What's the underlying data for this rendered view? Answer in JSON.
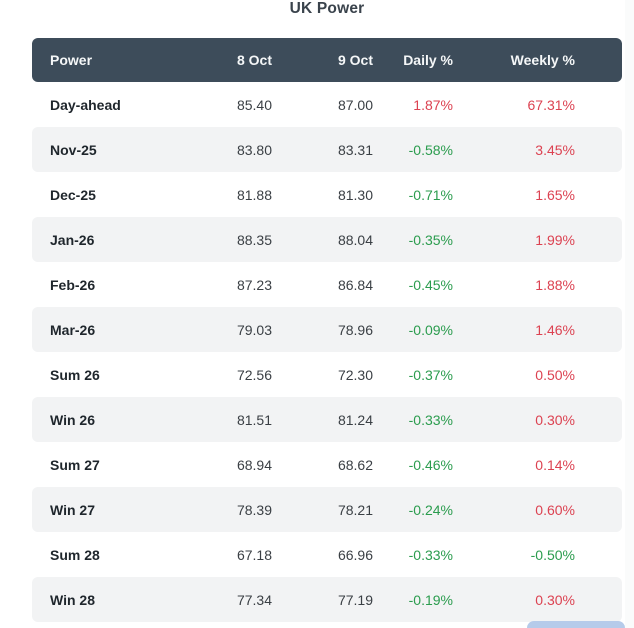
{
  "title": "UK Power",
  "colors": {
    "header_bg": "#3d4c5a",
    "stripe_row_bg": "#f2f3f4",
    "negative_red": "#dc4251",
    "positive_green": "#2b9c4e",
    "partial_button_blue": "#b6cbea"
  },
  "table": {
    "columns": [
      "Power",
      "8 Oct",
      "9 Oct",
      "Daily %",
      "Weekly %"
    ],
    "rows": [
      {
        "label": "Day-ahead",
        "oct8": "85.40",
        "oct9": "87.00",
        "daily": "1.87%",
        "weekly": "67.31%",
        "daily_color": "#dc4251",
        "weekly_color": "#dc4251"
      },
      {
        "label": "Nov-25",
        "oct8": "83.80",
        "oct9": "83.31",
        "daily": "-0.58%",
        "weekly": "3.45%",
        "daily_color": "#2b9c4e",
        "weekly_color": "#dc4251"
      },
      {
        "label": "Dec-25",
        "oct8": "81.88",
        "oct9": "81.30",
        "daily": "-0.71%",
        "weekly": "1.65%",
        "daily_color": "#2b9c4e",
        "weekly_color": "#dc4251"
      },
      {
        "label": "Jan-26",
        "oct8": "88.35",
        "oct9": "88.04",
        "daily": "-0.35%",
        "weekly": "1.99%",
        "daily_color": "#2b9c4e",
        "weekly_color": "#dc4251"
      },
      {
        "label": "Feb-26",
        "oct8": "87.23",
        "oct9": "86.84",
        "daily": "-0.45%",
        "weekly": "1.88%",
        "daily_color": "#2b9c4e",
        "weekly_color": "#dc4251"
      },
      {
        "label": "Mar-26",
        "oct8": "79.03",
        "oct9": "78.96",
        "daily": "-0.09%",
        "weekly": "1.46%",
        "daily_color": "#2b9c4e",
        "weekly_color": "#dc4251"
      },
      {
        "label": "Sum 26",
        "oct8": "72.56",
        "oct9": "72.30",
        "daily": "-0.37%",
        "weekly": "0.50%",
        "daily_color": "#2b9c4e",
        "weekly_color": "#dc4251"
      },
      {
        "label": "Win 26",
        "oct8": "81.51",
        "oct9": "81.24",
        "daily": "-0.33%",
        "weekly": "0.30%",
        "daily_color": "#2b9c4e",
        "weekly_color": "#dc4251"
      },
      {
        "label": "Sum 27",
        "oct8": "68.94",
        "oct9": "68.62",
        "daily": "-0.46%",
        "weekly": "0.14%",
        "daily_color": "#2b9c4e",
        "weekly_color": "#dc4251"
      },
      {
        "label": "Win 27",
        "oct8": "78.39",
        "oct9": "78.21",
        "daily": "-0.24%",
        "weekly": "0.60%",
        "daily_color": "#2b9c4e",
        "weekly_color": "#dc4251"
      },
      {
        "label": "Sum 28",
        "oct8": "67.18",
        "oct9": "66.96",
        "daily": "-0.33%",
        "weekly": "-0.50%",
        "daily_color": "#2b9c4e",
        "weekly_color": "#2b9c4e"
      },
      {
        "label": "Win 28",
        "oct8": "77.34",
        "oct9": "77.19",
        "daily": "-0.19%",
        "weekly": "0.30%",
        "daily_color": "#2b9c4e",
        "weekly_color": "#dc4251"
      }
    ]
  }
}
